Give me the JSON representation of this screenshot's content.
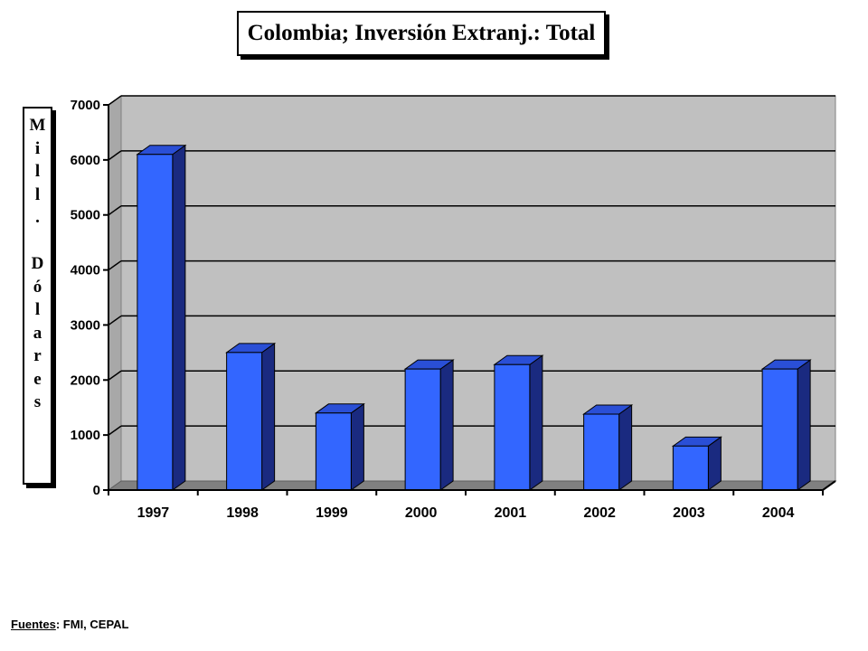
{
  "chart_data": {
    "type": "bar",
    "title": "Colombia; Inversión Extranj.: Total",
    "ylabel": "Mill. Dólares",
    "xlabel": "",
    "categories": [
      "1997",
      "1998",
      "1999",
      "2000",
      "2001",
      "2002",
      "2003",
      "2004"
    ],
    "values": [
      6100,
      2500,
      1400,
      2200,
      2280,
      1380,
      800,
      2200
    ],
    "ylim": [
      0,
      7000
    ],
    "yticks": [
      "0",
      "1000",
      "2000",
      "3000",
      "4000",
      "5000",
      "6000",
      "7000"
    ],
    "grid": true,
    "legend": "none",
    "bar_color": "#3366ff",
    "bar_side_color": "#1a2a80",
    "plot_background": "#c0c0c0"
  },
  "source": {
    "label": "Fuentes",
    "separator": ":",
    "text": "  FMI, CEPAL"
  }
}
